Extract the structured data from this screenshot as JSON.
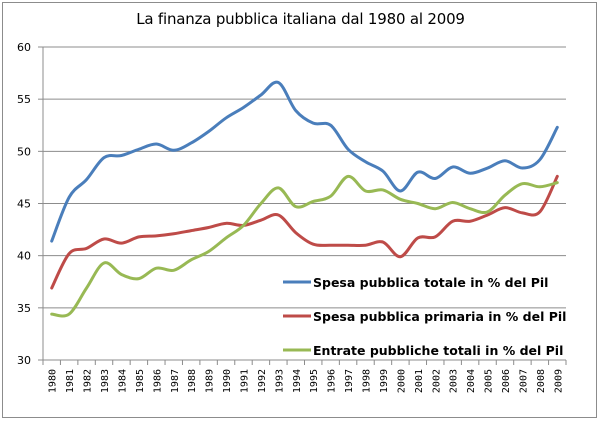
{
  "chart_data": {
    "type": "line",
    "title": "La finanza pubblica italiana dal 1980 al 2009",
    "xlabel": "",
    "ylabel": "",
    "ylim": [
      30,
      60
    ],
    "yticks": [
      "30",
      "35",
      "40",
      "45",
      "50",
      "55",
      "60"
    ],
    "grid": true,
    "legend_position": "bottom-right",
    "categories": [
      "1980",
      "1981",
      "1982",
      "1983",
      "1984",
      "1985",
      "1986",
      "1987",
      "1988",
      "1989",
      "1990",
      "1991",
      "1992",
      "1993",
      "1994",
      "1995",
      "1996",
      "1997",
      "1998",
      "1999",
      "2000",
      "2001",
      "2002",
      "2003",
      "2004",
      "2005",
      "2006",
      "2007",
      "2008",
      "2009"
    ],
    "series": [
      {
        "name": "Spesa pubblica totale in % del Pil",
        "color": "#4a7ebb",
        "values": [
          41.4,
          45.6,
          47.3,
          49.4,
          49.6,
          50.2,
          50.7,
          50.1,
          50.8,
          51.9,
          53.2,
          54.2,
          55.4,
          56.6,
          53.9,
          52.7,
          52.5,
          50.2,
          49.0,
          48.1,
          46.2,
          48.0,
          47.4,
          48.5,
          47.9,
          48.4,
          49.1,
          48.4,
          49.2,
          52.3
        ]
      },
      {
        "name": "Spesa pubblica primaria in % del Pil",
        "color": "#be4b48",
        "values": [
          36.9,
          40.2,
          40.7,
          41.6,
          41.2,
          41.8,
          41.9,
          42.1,
          42.4,
          42.7,
          43.1,
          42.9,
          43.4,
          43.9,
          42.2,
          41.1,
          41.0,
          41.0,
          41.0,
          41.3,
          39.9,
          41.7,
          41.8,
          43.3,
          43.3,
          43.9,
          44.6,
          44.1,
          44.2,
          47.6
        ]
      },
      {
        "name": "Entrate pubbliche totali in % del Pil",
        "color": "#98b954",
        "values": [
          34.4,
          34.4,
          36.9,
          39.3,
          38.2,
          37.8,
          38.8,
          38.6,
          39.6,
          40.4,
          41.7,
          42.9,
          45.0,
          46.5,
          44.7,
          45.2,
          45.7,
          47.6,
          46.2,
          46.3,
          45.4,
          45.0,
          44.5,
          45.1,
          44.5,
          44.2,
          45.8,
          46.9,
          46.6,
          47.0
        ]
      }
    ]
  },
  "colors": {
    "gridline": "#8c8c8c",
    "axis": "#8c8c8c"
  }
}
